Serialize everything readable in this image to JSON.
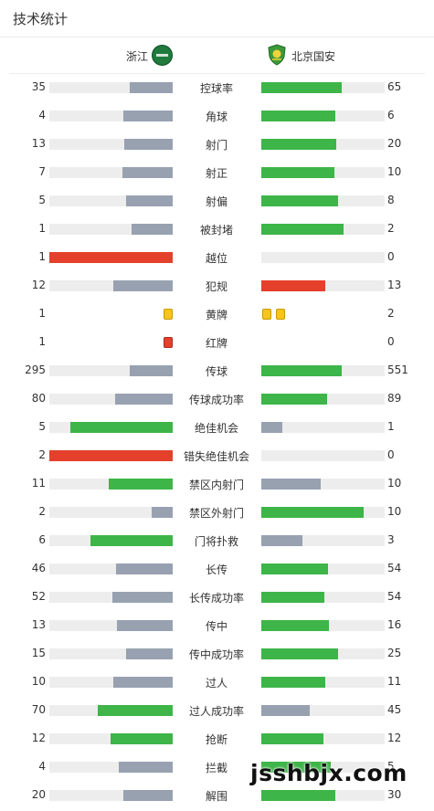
{
  "header": {
    "title": "技术统计"
  },
  "teams": {
    "home": "浙江",
    "away": "北京国安"
  },
  "colors": {
    "green": "#3db548",
    "gray": "#98a1b0",
    "red": "#e4402c",
    "track": "#ededed",
    "yellow": "#f5c518"
  },
  "stats": [
    {
      "label": "控球率",
      "home": "35",
      "away": "65",
      "home_fill": 0.35,
      "away_fill": 0.65,
      "home_color": "gray",
      "away_color": "green"
    },
    {
      "label": "角球",
      "home": "4",
      "away": "6",
      "home_fill": 0.4,
      "away_fill": 0.6,
      "home_color": "gray",
      "away_color": "green"
    },
    {
      "label": "射门",
      "home": "13",
      "away": "20",
      "home_fill": 0.39,
      "away_fill": 0.61,
      "home_color": "gray",
      "away_color": "green"
    },
    {
      "label": "射正",
      "home": "7",
      "away": "10",
      "home_fill": 0.41,
      "away_fill": 0.59,
      "home_color": "gray",
      "away_color": "green"
    },
    {
      "label": "射偏",
      "home": "5",
      "away": "8",
      "home_fill": 0.38,
      "away_fill": 0.62,
      "home_color": "gray",
      "away_color": "green"
    },
    {
      "label": "被封堵",
      "home": "1",
      "away": "2",
      "home_fill": 0.33,
      "away_fill": 0.67,
      "home_color": "gray",
      "away_color": "green"
    },
    {
      "label": "越位",
      "home": "1",
      "away": "0",
      "home_fill": 1.0,
      "away_fill": 0,
      "home_color": "red",
      "away_color": "green"
    },
    {
      "label": "犯规",
      "home": "12",
      "away": "13",
      "home_fill": 0.48,
      "away_fill": 0.52,
      "home_color": "gray",
      "away_color": "red"
    },
    {
      "label": "黄牌",
      "home": "1",
      "away": "2",
      "type": "yellow"
    },
    {
      "label": "红牌",
      "home": "1",
      "away": "0",
      "type": "red"
    },
    {
      "label": "传球",
      "home": "295",
      "away": "551",
      "home_fill": 0.35,
      "away_fill": 0.65,
      "home_color": "gray",
      "away_color": "green"
    },
    {
      "label": "传球成功率",
      "home": "80",
      "away": "89",
      "home_fill": 0.47,
      "away_fill": 0.53,
      "home_color": "gray",
      "away_color": "green"
    },
    {
      "label": "绝佳机会",
      "home": "5",
      "away": "1",
      "home_fill": 0.83,
      "away_fill": 0.17,
      "home_color": "green",
      "away_color": "gray"
    },
    {
      "label": "错失绝佳机会",
      "home": "2",
      "away": "0",
      "home_fill": 1.0,
      "away_fill": 0,
      "home_color": "red",
      "away_color": "green"
    },
    {
      "label": "禁区内射门",
      "home": "11",
      "away": "10",
      "home_fill": 0.52,
      "away_fill": 0.48,
      "home_color": "green",
      "away_color": "gray"
    },
    {
      "label": "禁区外射门",
      "home": "2",
      "away": "10",
      "home_fill": 0.17,
      "away_fill": 0.83,
      "home_color": "gray",
      "away_color": "green"
    },
    {
      "label": "门将扑救",
      "home": "6",
      "away": "3",
      "home_fill": 0.67,
      "away_fill": 0.33,
      "home_color": "green",
      "away_color": "gray"
    },
    {
      "label": "长传",
      "home": "46",
      "away": "54",
      "home_fill": 0.46,
      "away_fill": 0.54,
      "home_color": "gray",
      "away_color": "green"
    },
    {
      "label": "长传成功率",
      "home": "52",
      "away": "54",
      "home_fill": 0.49,
      "away_fill": 0.51,
      "home_color": "gray",
      "away_color": "green"
    },
    {
      "label": "传中",
      "home": "13",
      "away": "16",
      "home_fill": 0.45,
      "away_fill": 0.55,
      "home_color": "gray",
      "away_color": "green"
    },
    {
      "label": "传中成功率",
      "home": "15",
      "away": "25",
      "home_fill": 0.38,
      "away_fill": 0.62,
      "home_color": "gray",
      "away_color": "green"
    },
    {
      "label": "过人",
      "home": "10",
      "away": "11",
      "home_fill": 0.48,
      "away_fill": 0.52,
      "home_color": "gray",
      "away_color": "green"
    },
    {
      "label": "过人成功率",
      "home": "70",
      "away": "45",
      "home_fill": 0.61,
      "away_fill": 0.39,
      "home_color": "green",
      "away_color": "gray"
    },
    {
      "label": "抢断",
      "home": "12",
      "away": "12",
      "home_fill": 0.5,
      "away_fill": 0.5,
      "home_color": "green",
      "away_color": "green"
    },
    {
      "label": "拦截",
      "home": "4",
      "away": "5",
      "home_fill": 0.44,
      "away_fill": 0.56,
      "home_color": "gray",
      "away_color": "green"
    },
    {
      "label": "解围",
      "home": "20",
      "away": "30",
      "home_fill": 0.4,
      "away_fill": 0.6,
      "home_color": "gray",
      "away_color": "green"
    }
  ],
  "watermark": "jsshbjx.com"
}
